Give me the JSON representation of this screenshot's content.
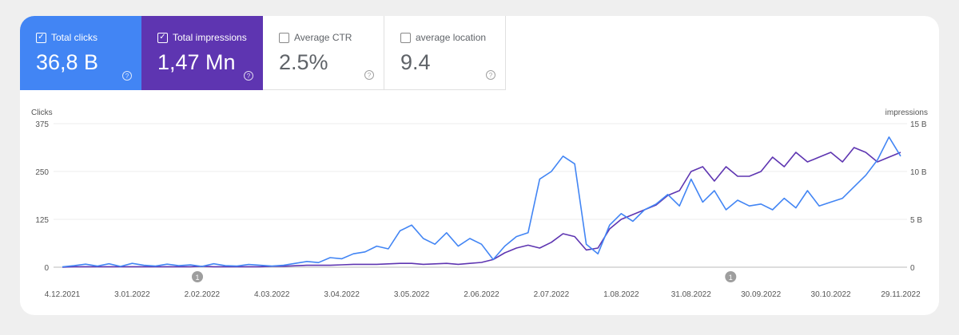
{
  "metrics": [
    {
      "label": "Total clicks",
      "value": "36,8 B",
      "checked": true,
      "color": "#4285f4"
    },
    {
      "label": "Total impressions",
      "value": "1,47 Mn",
      "checked": true,
      "color": "#5e35b1"
    },
    {
      "label": "Average CTR",
      "value": "2.5%",
      "checked": false
    },
    {
      "label": "average location",
      "value": "9.4",
      "checked": false
    }
  ],
  "chart_data": {
    "type": "line",
    "left_axis": {
      "label": "Clicks",
      "ticks": [
        "0",
        "125",
        "250",
        "375"
      ],
      "range": [
        0,
        375
      ]
    },
    "right_axis": {
      "label": "impressions",
      "ticks": [
        "0",
        "5 B",
        "10 B",
        "15 B"
      ],
      "range": [
        0,
        15
      ]
    },
    "x_tick_labels": [
      "4.12.2021",
      "3.01.2022",
      "2.02.2022",
      "4.03.2022",
      "3.04.2022",
      "3.05.2022",
      "2.06.2022",
      "2.07.2022",
      "1.08.2022",
      "31.08.2022",
      "30.09.2022",
      "30.10.2022",
      "29.11.2022"
    ],
    "x": [
      "2021-12-04",
      "2021-12-09",
      "2021-12-14",
      "2021-12-19",
      "2021-12-24",
      "2021-12-29",
      "2022-01-03",
      "2022-01-08",
      "2022-01-13",
      "2022-01-18",
      "2022-01-23",
      "2022-01-28",
      "2022-02-02",
      "2022-02-07",
      "2022-02-12",
      "2022-02-17",
      "2022-02-22",
      "2022-02-27",
      "2022-03-04",
      "2022-03-09",
      "2022-03-14",
      "2022-03-19",
      "2022-03-24",
      "2022-03-29",
      "2022-04-03",
      "2022-04-08",
      "2022-04-13",
      "2022-04-18",
      "2022-04-23",
      "2022-04-28",
      "2022-05-03",
      "2022-05-08",
      "2022-05-13",
      "2022-05-18",
      "2022-05-23",
      "2022-05-28",
      "2022-06-02",
      "2022-06-07",
      "2022-06-12",
      "2022-06-17",
      "2022-06-22",
      "2022-06-27",
      "2022-07-02",
      "2022-07-07",
      "2022-07-12",
      "2022-07-17",
      "2022-07-22",
      "2022-07-27",
      "2022-08-01",
      "2022-08-06",
      "2022-08-11",
      "2022-08-16",
      "2022-08-21",
      "2022-08-26",
      "2022-08-31",
      "2022-09-05",
      "2022-09-10",
      "2022-09-15",
      "2022-09-20",
      "2022-09-25",
      "2022-09-30",
      "2022-10-05",
      "2022-10-10",
      "2022-10-15",
      "2022-10-20",
      "2022-10-25",
      "2022-10-30",
      "2022-11-04",
      "2022-11-09",
      "2022-11-14",
      "2022-11-19",
      "2022-11-24",
      "2022-11-29"
    ],
    "series": [
      {
        "axis": "left",
        "color": "#4285f4",
        "values": [
          1,
          4,
          8,
          3,
          9,
          2,
          10,
          5,
          3,
          8,
          4,
          6,
          2,
          9,
          4,
          3,
          7,
          5,
          3,
          5,
          10,
          15,
          12,
          25,
          22,
          35,
          40,
          55,
          48,
          95,
          110,
          75,
          60,
          90,
          55,
          75,
          60,
          20,
          55,
          80,
          90,
          230,
          250,
          290,
          270,
          60,
          35,
          110,
          140,
          120,
          150,
          165,
          190,
          160,
          230,
          170,
          200,
          150,
          175,
          160,
          165,
          150,
          180,
          155,
          200,
          160,
          170,
          180,
          210,
          240,
          280,
          340,
          290
        ]
      },
      {
        "axis": "right",
        "color": "#5e35b1",
        "values": [
          0,
          0.05,
          0.05,
          0.05,
          0.05,
          0.05,
          0.05,
          0.05,
          0.05,
          0.05,
          0.05,
          0.05,
          0.1,
          0.05,
          0.05,
          0.05,
          0.05,
          0.05,
          0.1,
          0.1,
          0.15,
          0.2,
          0.2,
          0.2,
          0.25,
          0.3,
          0.3,
          0.3,
          0.35,
          0.4,
          0.4,
          0.3,
          0.35,
          0.4,
          0.3,
          0.4,
          0.5,
          0.8,
          1.5,
          2.0,
          2.3,
          2.0,
          2.6,
          3.5,
          3.2,
          1.8,
          2.0,
          4.0,
          5.0,
          5.5,
          6.0,
          6.5,
          7.5,
          8.0,
          10.0,
          10.5,
          9.0,
          10.5,
          9.5,
          9.5,
          10,
          11.5,
          10.5,
          12,
          11,
          11.5,
          12,
          11,
          12.5,
          12,
          11,
          11.5,
          12
        ]
      }
    ],
    "annotations": [
      {
        "date": "2022-01-31",
        "label": "1"
      },
      {
        "date": "2022-09-17",
        "label": "1"
      }
    ],
    "grid": true
  }
}
